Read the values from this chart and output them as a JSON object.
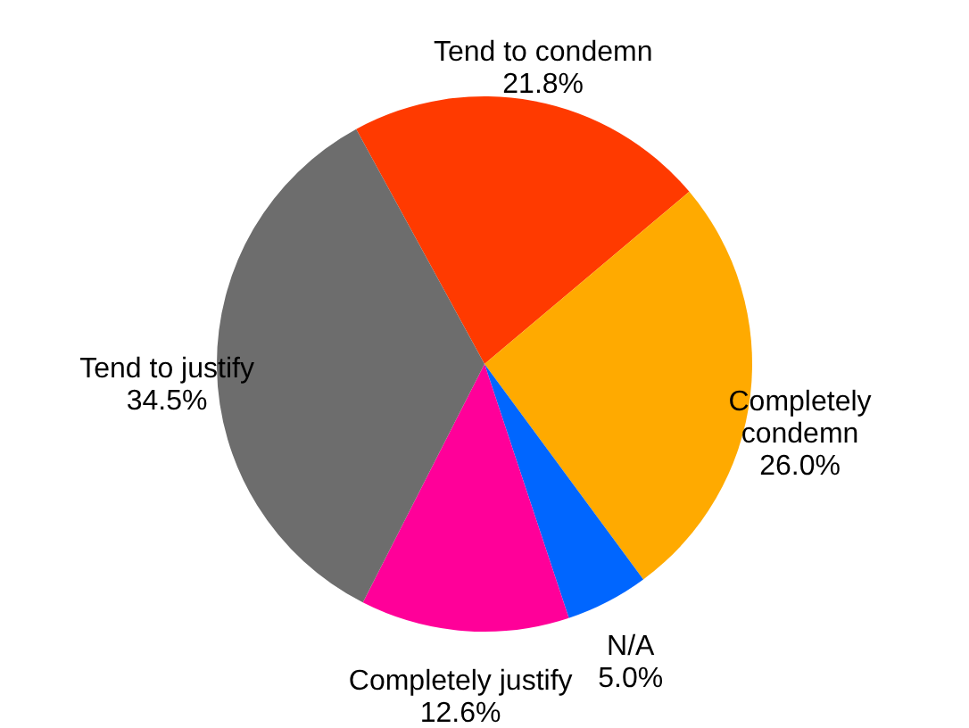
{
  "chart_data": {
    "type": "pie",
    "categories": [
      "Tend to condemn",
      "Completely\ncondemn",
      "N/A",
      "Completely justify",
      "Tend to justify"
    ],
    "values": [
      21.8,
      26.0,
      5.0,
      12.6,
      34.5
    ],
    "value_labels": [
      "21.8%",
      "26.0%",
      "5.0%",
      "12.6%",
      "34.5%"
    ],
    "colors": [
      "#ff3a00",
      "#ffaa00",
      "#0066ff",
      "#ff0099",
      "#6d6d6d"
    ]
  }
}
